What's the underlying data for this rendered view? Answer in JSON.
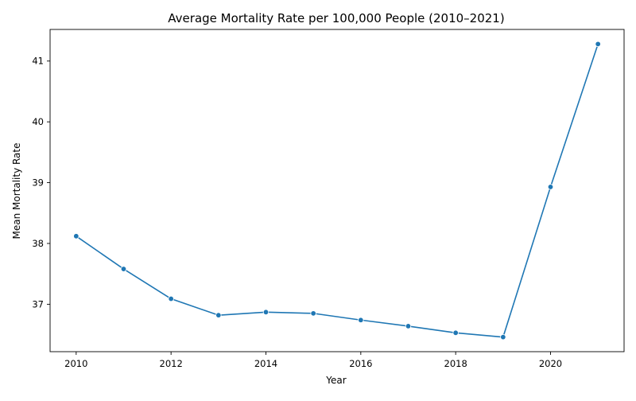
{
  "chart_data": {
    "type": "line",
    "title": "Average Mortality Rate per 100,000 People (2010–2021)",
    "xlabel": "Year",
    "ylabel": "Mean Mortality Rate",
    "x": [
      2010,
      2011,
      2012,
      2013,
      2014,
      2015,
      2016,
      2017,
      2018,
      2019,
      2020,
      2021
    ],
    "series": [
      {
        "values": [
          38.12,
          37.58,
          37.09,
          36.82,
          36.87,
          36.85,
          36.74,
          36.64,
          36.53,
          36.46,
          38.93,
          41.28
        ],
        "color": "#1f77b4",
        "marker": "circle"
      }
    ],
    "xlim": [
      2009.45,
      2021.55
    ],
    "ylim": [
      36.22,
      41.52
    ],
    "xticks": [
      2010,
      2012,
      2014,
      2016,
      2018,
      2020
    ],
    "yticks": [
      37,
      38,
      39,
      40,
      41
    ],
    "grid": false,
    "legend": "none"
  }
}
